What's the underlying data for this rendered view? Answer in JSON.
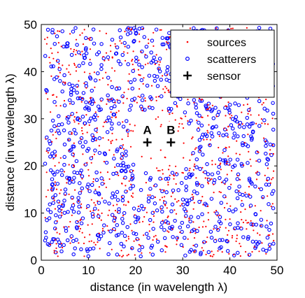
{
  "chart_data": {
    "type": "scatter",
    "title": "",
    "xlabel": "distance (in wavelength λ)",
    "ylabel": "distance (in wavelength λ)",
    "xlim": [
      0,
      50
    ],
    "ylim": [
      0,
      50
    ],
    "xticks": [
      0,
      10,
      20,
      30,
      40,
      50
    ],
    "yticks": [
      0,
      10,
      20,
      30,
      40,
      50
    ],
    "grid": false,
    "legend": {
      "placement": "top-right",
      "entries": [
        {
          "key": "sources",
          "label": "sources",
          "marker": "dot",
          "color": "#ff0000"
        },
        {
          "key": "scatterers",
          "label": "scatterers",
          "marker": "circle",
          "color": "#0000ff"
        },
        {
          "key": "sensor",
          "label": "sensor",
          "marker": "plus",
          "color": "#000000"
        }
      ]
    },
    "sensors": [
      {
        "label": "A",
        "x": 22.5,
        "y": 25
      },
      {
        "label": "B",
        "x": 27.5,
        "y": 25
      }
    ],
    "scatter_fields": {
      "sources": {
        "count": 900,
        "region": [
          0,
          50,
          0,
          50
        ],
        "exclusion_radius": 2.5,
        "exclusion_centers": [
          [
            22.5,
            25
          ],
          [
            27.5,
            25
          ]
        ]
      },
      "scatterers": {
        "count": 900,
        "region": [
          0,
          50,
          0,
          50
        ],
        "exclusion_radius": 7,
        "exclusion_centers": [
          [
            25,
            25
          ]
        ]
      }
    }
  }
}
